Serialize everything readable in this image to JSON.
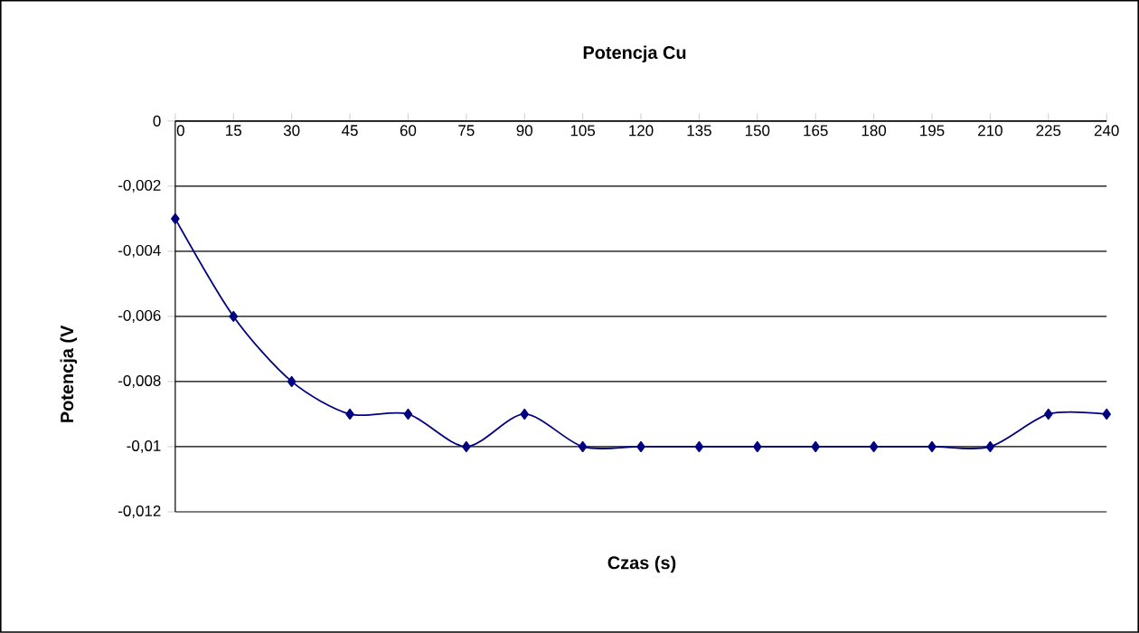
{
  "chart_data": {
    "type": "line",
    "title": "Potencja  Cu",
    "xlabel": "Czas (s)",
    "ylabel": "Potencja   (V",
    "categories": [
      "0",
      "15",
      "30",
      "45",
      "60",
      "75",
      "90",
      "105",
      "120",
      "135",
      "150",
      "165",
      "180",
      "195",
      "210",
      "225",
      "240"
    ],
    "series": [
      {
        "color": "#000080",
        "values": [
          -0.003,
          -0.006,
          -0.008,
          -0.009,
          -0.009,
          -0.01,
          -0.009,
          -0.01,
          -0.01,
          -0.01,
          -0.01,
          -0.01,
          -0.01,
          -0.01,
          -0.01,
          -0.009,
          -0.009
        ]
      }
    ],
    "ylim": [
      -0.012,
      0
    ],
    "yticks": [
      0,
      {
        "value": -0.002,
        "label": "-0,002"
      },
      {
        "value": -0.004,
        "label": "-0,004"
      },
      {
        "value": -0.006,
        "label": "-0,006"
      },
      {
        "value": -0.008,
        "label": "-0,008"
      },
      {
        "value": -0.01,
        "label": "-0,01"
      },
      {
        "value": -0.012,
        "label": "-0,012"
      }
    ],
    "grid": "y",
    "marker": "diamond",
    "line_style": "solid"
  }
}
